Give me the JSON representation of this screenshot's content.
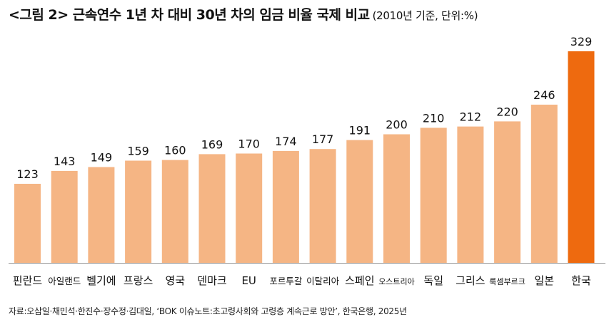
{
  "title": {
    "main": "<그림 2> 근속연수 1년 차 대비 30년 차의 임금 비율 국제 비교",
    "sub": "(2010년 기준, 단위:%)"
  },
  "source": "자료:오삼일·채민석·한진수·장수정·김대일, ‘BOK 이슈노트:초고령사회와 고령층 계속근로 방안’, 한국은행, 2025년",
  "colors": {
    "bar": "#F5B584",
    "highlight": "#EE6A0F",
    "axis": "#999999",
    "text": "#111111"
  },
  "chart_data": {
    "type": "bar",
    "title": "근속연수 1년 차 대비 30년 차의 임금 비율 국제 비교",
    "ylabel": "%",
    "xlabel": "",
    "ylim": [
      0,
      329
    ],
    "categories": [
      "핀란드",
      "아일랜드",
      "벨기에",
      "프랑스",
      "영국",
      "덴마크",
      "EU",
      "포르투갈",
      "이탈리아",
      "스페인",
      "오스트리아",
      "독일",
      "그리스",
      "룩셈부르크",
      "일본",
      "한국"
    ],
    "values": [
      123,
      143,
      149,
      159,
      160,
      169,
      170,
      174,
      177,
      191,
      200,
      210,
      212,
      220,
      246,
      329
    ],
    "highlight_category": "한국"
  }
}
